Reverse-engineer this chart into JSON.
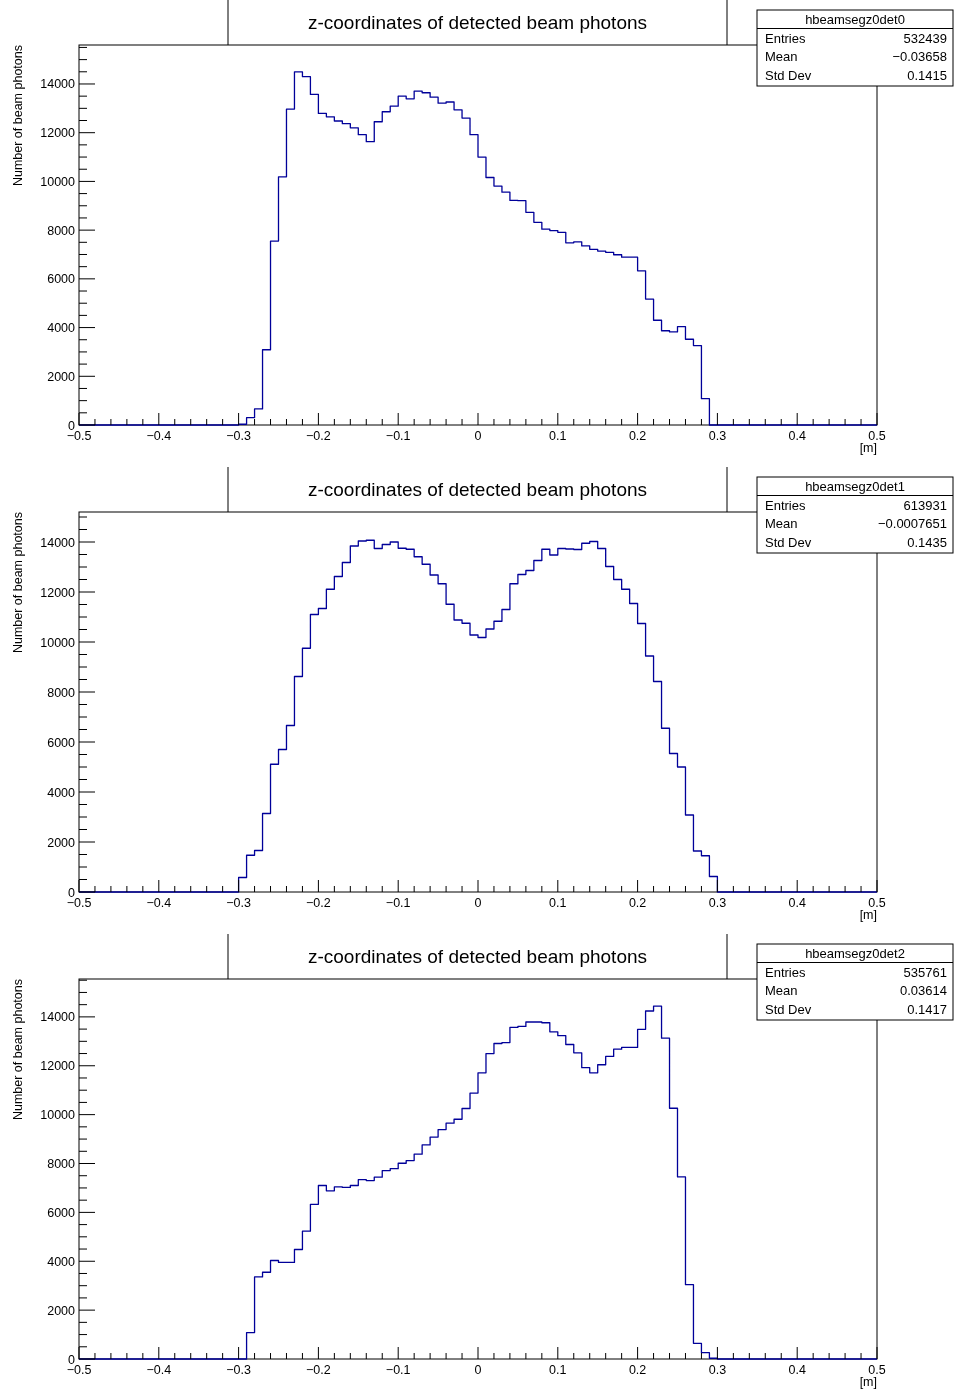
{
  "chart_data": [
    {
      "type": "histogram",
      "title": "z-coordinates of detected beam photons",
      "xlabel": "[m]",
      "ylabel": "Number of beam photons",
      "color": "#000099",
      "xlim": [
        -0.5,
        0.5
      ],
      "ylim": [
        0,
        15600
      ],
      "xticks": [
        {
          "value": -0.5,
          "label": "−0.5"
        },
        {
          "value": -0.48,
          "label": null
        },
        {
          "value": -0.46,
          "label": null
        },
        {
          "value": -0.44,
          "label": null
        },
        {
          "value": -0.42,
          "label": null
        },
        {
          "value": -0.4,
          "label": "−0.4"
        },
        {
          "value": -0.38,
          "label": null
        },
        {
          "value": -0.36,
          "label": null
        },
        {
          "value": -0.34,
          "label": null
        },
        {
          "value": -0.32,
          "label": null
        },
        {
          "value": -0.3,
          "label": "−0.3"
        },
        {
          "value": -0.28,
          "label": null
        },
        {
          "value": -0.26,
          "label": null
        },
        {
          "value": -0.24,
          "label": null
        },
        {
          "value": -0.22,
          "label": null
        },
        {
          "value": -0.2,
          "label": "−0.2"
        },
        {
          "value": -0.18,
          "label": null
        },
        {
          "value": -0.16,
          "label": null
        },
        {
          "value": -0.14,
          "label": null
        },
        {
          "value": -0.12,
          "label": null
        },
        {
          "value": -0.1,
          "label": "−0.1"
        },
        {
          "value": -0.08,
          "label": null
        },
        {
          "value": -0.06,
          "label": null
        },
        {
          "value": -0.04,
          "label": null
        },
        {
          "value": -0.02,
          "label": null
        },
        0,
        {
          "value": 0.02,
          "label": null
        },
        {
          "value": 0.04,
          "label": null
        },
        {
          "value": 0.06,
          "label": null
        },
        {
          "value": 0.08,
          "label": null
        },
        0.1,
        {
          "value": 0.12,
          "label": null
        },
        {
          "value": 0.14,
          "label": null
        },
        {
          "value": 0.16,
          "label": null
        },
        {
          "value": 0.18,
          "label": null
        },
        0.2,
        {
          "value": 0.22,
          "label": null
        },
        {
          "value": 0.24,
          "label": null
        },
        {
          "value": 0.26,
          "label": null
        },
        {
          "value": 0.28,
          "label": null
        },
        0.3,
        {
          "value": 0.32,
          "label": null
        },
        {
          "value": 0.34,
          "label": null
        },
        {
          "value": 0.36,
          "label": null
        },
        {
          "value": 0.38,
          "label": null
        },
        0.4,
        {
          "value": 0.42,
          "label": null
        },
        {
          "value": 0.44,
          "label": null
        },
        {
          "value": 0.46,
          "label": null
        },
        {
          "value": 0.48,
          "label": null
        },
        0.5
      ],
      "yticks": [
        0,
        {
          "value": 500,
          "label": null
        },
        {
          "value": 1000,
          "label": null
        },
        {
          "value": 1500,
          "label": null
        },
        2000,
        {
          "value": 2500,
          "label": null
        },
        {
          "value": 3000,
          "label": null
        },
        {
          "value": 3500,
          "label": null
        },
        4000,
        {
          "value": 4500,
          "label": null
        },
        {
          "value": 5000,
          "label": null
        },
        {
          "value": 5500,
          "label": null
        },
        6000,
        {
          "value": 6500,
          "label": null
        },
        {
          "value": 7000,
          "label": null
        },
        {
          "value": 7500,
          "label": null
        },
        8000,
        {
          "value": 8500,
          "label": null
        },
        {
          "value": 9000,
          "label": null
        },
        {
          "value": 9500,
          "label": null
        },
        10000,
        {
          "value": 10500,
          "label": null
        },
        {
          "value": 11000,
          "label": null
        },
        {
          "value": 11500,
          "label": null
        },
        12000,
        {
          "value": 12500,
          "label": null
        },
        {
          "value": 13000,
          "label": null
        },
        {
          "value": 13500,
          "label": null
        },
        14000,
        {
          "value": 14500,
          "label": null
        },
        {
          "value": 15000,
          "label": null
        },
        {
          "value": 15500,
          "label": null
        }
      ],
      "bins": [
        -0.5,
        -0.49,
        -0.48,
        -0.47,
        -0.46,
        -0.45,
        -0.44,
        -0.43,
        -0.42,
        -0.41,
        -0.4,
        -0.39,
        -0.38,
        -0.37,
        -0.36,
        -0.35,
        -0.34,
        -0.33,
        -0.32,
        -0.31,
        -0.3,
        -0.29,
        -0.28,
        -0.27,
        -0.26,
        -0.25,
        -0.24,
        -0.23,
        -0.22,
        -0.21,
        -0.2,
        -0.19,
        -0.18,
        -0.17,
        -0.16,
        -0.15,
        -0.14,
        -0.13,
        -0.12,
        -0.11,
        -0.1,
        -0.09,
        -0.08,
        -0.07,
        -0.06,
        -0.05,
        -0.04,
        -0.03,
        -0.02,
        -0.01,
        0,
        0.01,
        0.02,
        0.03,
        0.04,
        0.05,
        0.06,
        0.07,
        0.08,
        0.09,
        0.1,
        0.11,
        0.12,
        0.13,
        0.14,
        0.15,
        0.16,
        0.17,
        0.18,
        0.19,
        0.2,
        0.21,
        0.22,
        0.23,
        0.24,
        0.25,
        0.26,
        0.27,
        0.28,
        0.29,
        0.3,
        0.31,
        0.32,
        0.33,
        0.34,
        0.35,
        0.36,
        0.37,
        0.38,
        0.39,
        0.4,
        0.41,
        0.42,
        0.43,
        0.44,
        0.45,
        0.46,
        0.47,
        0.48,
        0.49,
        0.5
      ],
      "values": [
        0,
        0,
        0,
        0,
        0,
        0,
        0,
        0,
        0,
        0,
        0,
        0,
        0,
        0,
        0,
        0,
        0,
        0,
        0,
        0,
        30,
        300,
        660,
        3090,
        7550,
        10190,
        12970,
        14500,
        14300,
        13570,
        12790,
        12650,
        12480,
        12370,
        12200,
        11920,
        11630,
        12450,
        12860,
        13090,
        13500,
        13390,
        13710,
        13640,
        13460,
        13210,
        13260,
        12940,
        12600,
        11920,
        11000,
        10160,
        9810,
        9560,
        9220,
        9210,
        8730,
        8320,
        8040,
        7980,
        7910,
        7480,
        7520,
        7350,
        7210,
        7140,
        7090,
        6990,
        6890,
        6890,
        6330,
        5170,
        4300,
        3870,
        3820,
        4040,
        3520,
        3260,
        1080,
        0,
        0,
        0,
        0,
        0,
        0,
        0,
        0,
        0,
        0,
        0,
        0,
        0,
        0,
        0,
        0,
        0,
        0,
        0,
        0,
        0
      ],
      "annotations": [
        "hbeamsegz0det0",
        "Entries",
        "532439",
        "Mean",
        "−0.03658",
        "Std Dev",
        "0.1415"
      ]
    },
    {
      "type": "histogram",
      "title": "z-coordinates of detected beam photons",
      "xlabel": "[m]",
      "ylabel": "Number of beam photons",
      "color": "#000099",
      "xlim": [
        -0.5,
        0.5
      ],
      "ylim": [
        0,
        15200
      ],
      "xticks": [
        {
          "value": -0.5,
          "label": "−0.5"
        },
        {
          "value": -0.48,
          "label": null
        },
        {
          "value": -0.46,
          "label": null
        },
        {
          "value": -0.44,
          "label": null
        },
        {
          "value": -0.42,
          "label": null
        },
        {
          "value": -0.4,
          "label": "−0.4"
        },
        {
          "value": -0.38,
          "label": null
        },
        {
          "value": -0.36,
          "label": null
        },
        {
          "value": -0.34,
          "label": null
        },
        {
          "value": -0.32,
          "label": null
        },
        {
          "value": -0.3,
          "label": "−0.3"
        },
        {
          "value": -0.28,
          "label": null
        },
        {
          "value": -0.26,
          "label": null
        },
        {
          "value": -0.24,
          "label": null
        },
        {
          "value": -0.22,
          "label": null
        },
        {
          "value": -0.2,
          "label": "−0.2"
        },
        {
          "value": -0.18,
          "label": null
        },
        {
          "value": -0.16,
          "label": null
        },
        {
          "value": -0.14,
          "label": null
        },
        {
          "value": -0.12,
          "label": null
        },
        {
          "value": -0.1,
          "label": "−0.1"
        },
        {
          "value": -0.08,
          "label": null
        },
        {
          "value": -0.06,
          "label": null
        },
        {
          "value": -0.04,
          "label": null
        },
        {
          "value": -0.02,
          "label": null
        },
        0,
        {
          "value": 0.02,
          "label": null
        },
        {
          "value": 0.04,
          "label": null
        },
        {
          "value": 0.06,
          "label": null
        },
        {
          "value": 0.08,
          "label": null
        },
        0.1,
        {
          "value": 0.12,
          "label": null
        },
        {
          "value": 0.14,
          "label": null
        },
        {
          "value": 0.16,
          "label": null
        },
        {
          "value": 0.18,
          "label": null
        },
        0.2,
        {
          "value": 0.22,
          "label": null
        },
        {
          "value": 0.24,
          "label": null
        },
        {
          "value": 0.26,
          "label": null
        },
        {
          "value": 0.28,
          "label": null
        },
        0.3,
        {
          "value": 0.32,
          "label": null
        },
        {
          "value": 0.34,
          "label": null
        },
        {
          "value": 0.36,
          "label": null
        },
        {
          "value": 0.38,
          "label": null
        },
        0.4,
        {
          "value": 0.42,
          "label": null
        },
        {
          "value": 0.44,
          "label": null
        },
        {
          "value": 0.46,
          "label": null
        },
        {
          "value": 0.48,
          "label": null
        },
        0.5
      ],
      "yticks": [
        0,
        {
          "value": 500,
          "label": null
        },
        {
          "value": 1000,
          "label": null
        },
        {
          "value": 1500,
          "label": null
        },
        2000,
        {
          "value": 2500,
          "label": null
        },
        {
          "value": 3000,
          "label": null
        },
        {
          "value": 3500,
          "label": null
        },
        4000,
        {
          "value": 4500,
          "label": null
        },
        {
          "value": 5000,
          "label": null
        },
        {
          "value": 5500,
          "label": null
        },
        6000,
        {
          "value": 6500,
          "label": null
        },
        {
          "value": 7000,
          "label": null
        },
        {
          "value": 7500,
          "label": null
        },
        8000,
        {
          "value": 8500,
          "label": null
        },
        {
          "value": 9000,
          "label": null
        },
        {
          "value": 9500,
          "label": null
        },
        10000,
        {
          "value": 10500,
          "label": null
        },
        {
          "value": 11000,
          "label": null
        },
        {
          "value": 11500,
          "label": null
        },
        12000,
        {
          "value": 12500,
          "label": null
        },
        {
          "value": 13000,
          "label": null
        },
        {
          "value": 13500,
          "label": null
        },
        14000,
        {
          "value": 14500,
          "label": null
        },
        {
          "value": 15000,
          "label": null
        }
      ],
      "bins": [
        -0.5,
        -0.49,
        -0.48,
        -0.47,
        -0.46,
        -0.45,
        -0.44,
        -0.43,
        -0.42,
        -0.41,
        -0.4,
        -0.39,
        -0.38,
        -0.37,
        -0.36,
        -0.35,
        -0.34,
        -0.33,
        -0.32,
        -0.31,
        -0.3,
        -0.29,
        -0.28,
        -0.27,
        -0.26,
        -0.25,
        -0.24,
        -0.23,
        -0.22,
        -0.21,
        -0.2,
        -0.19,
        -0.18,
        -0.17,
        -0.16,
        -0.15,
        -0.14,
        -0.13,
        -0.12,
        -0.11,
        -0.1,
        -0.09,
        -0.08,
        -0.07,
        -0.06,
        -0.05,
        -0.04,
        -0.03,
        -0.02,
        -0.01,
        0,
        0.01,
        0.02,
        0.03,
        0.04,
        0.05,
        0.06,
        0.07,
        0.08,
        0.09,
        0.1,
        0.11,
        0.12,
        0.13,
        0.14,
        0.15,
        0.16,
        0.17,
        0.18,
        0.19,
        0.2,
        0.21,
        0.22,
        0.23,
        0.24,
        0.25,
        0.26,
        0.27,
        0.28,
        0.29,
        0.3,
        0.31,
        0.32,
        0.33,
        0.34,
        0.35,
        0.36,
        0.37,
        0.38,
        0.39,
        0.4,
        0.41,
        0.42,
        0.43,
        0.44,
        0.45,
        0.46,
        0.47,
        0.48,
        0.49,
        0.5
      ],
      "values": [
        0,
        0,
        0,
        0,
        0,
        0,
        0,
        0,
        0,
        0,
        0,
        0,
        0,
        0,
        0,
        0,
        0,
        0,
        0,
        0,
        580,
        1470,
        1660,
        3140,
        5110,
        5700,
        6660,
        8620,
        9750,
        11100,
        11340,
        12110,
        12620,
        13180,
        13840,
        14040,
        14070,
        13740,
        13900,
        14000,
        13750,
        13710,
        13410,
        13110,
        12680,
        12330,
        11510,
        10880,
        10750,
        10280,
        10180,
        10520,
        10830,
        11300,
        12330,
        12700,
        12860,
        13260,
        13710,
        13480,
        13740,
        13720,
        13700,
        13950,
        14020,
        13740,
        13020,
        12500,
        12110,
        11540,
        10740,
        9440,
        8420,
        6550,
        5540,
        5000,
        3080,
        1640,
        1450,
        620,
        0,
        0,
        0,
        0,
        0,
        0,
        0,
        0,
        0,
        0,
        0,
        0,
        0,
        0,
        0,
        0,
        0,
        0,
        0,
        0
      ],
      "annotations": [
        "hbeamsegz0det1",
        "Entries",
        "613931",
        "Mean",
        "−0.0007651",
        "Std Dev",
        "0.1435"
      ]
    },
    {
      "type": "histogram",
      "title": "z-coordinates of detected beam photons",
      "xlabel": "[m]",
      "ylabel": "Number of beam photons",
      "color": "#000099",
      "xlim": [
        -0.5,
        0.5
      ],
      "ylim": [
        0,
        15550
      ],
      "xticks": [
        {
          "value": -0.5,
          "label": "−0.5"
        },
        {
          "value": -0.48,
          "label": null
        },
        {
          "value": -0.46,
          "label": null
        },
        {
          "value": -0.44,
          "label": null
        },
        {
          "value": -0.42,
          "label": null
        },
        {
          "value": -0.4,
          "label": "−0.4"
        },
        {
          "value": -0.38,
          "label": null
        },
        {
          "value": -0.36,
          "label": null
        },
        {
          "value": -0.34,
          "label": null
        },
        {
          "value": -0.32,
          "label": null
        },
        {
          "value": -0.3,
          "label": "−0.3"
        },
        {
          "value": -0.28,
          "label": null
        },
        {
          "value": -0.26,
          "label": null
        },
        {
          "value": -0.24,
          "label": null
        },
        {
          "value": -0.22,
          "label": null
        },
        {
          "value": -0.2,
          "label": "−0.2"
        },
        {
          "value": -0.18,
          "label": null
        },
        {
          "value": -0.16,
          "label": null
        },
        {
          "value": -0.14,
          "label": null
        },
        {
          "value": -0.12,
          "label": null
        },
        {
          "value": -0.1,
          "label": "−0.1"
        },
        {
          "value": -0.08,
          "label": null
        },
        {
          "value": -0.06,
          "label": null
        },
        {
          "value": -0.04,
          "label": null
        },
        {
          "value": -0.02,
          "label": null
        },
        0,
        {
          "value": 0.02,
          "label": null
        },
        {
          "value": 0.04,
          "label": null
        },
        {
          "value": 0.06,
          "label": null
        },
        {
          "value": 0.08,
          "label": null
        },
        0.1,
        {
          "value": 0.12,
          "label": null
        },
        {
          "value": 0.14,
          "label": null
        },
        {
          "value": 0.16,
          "label": null
        },
        {
          "value": 0.18,
          "label": null
        },
        0.2,
        {
          "value": 0.22,
          "label": null
        },
        {
          "value": 0.24,
          "label": null
        },
        {
          "value": 0.26,
          "label": null
        },
        {
          "value": 0.28,
          "label": null
        },
        0.3,
        {
          "value": 0.32,
          "label": null
        },
        {
          "value": 0.34,
          "label": null
        },
        {
          "value": 0.36,
          "label": null
        },
        {
          "value": 0.38,
          "label": null
        },
        0.4,
        {
          "value": 0.42,
          "label": null
        },
        {
          "value": 0.44,
          "label": null
        },
        {
          "value": 0.46,
          "label": null
        },
        {
          "value": 0.48,
          "label": null
        },
        0.5
      ],
      "yticks": [
        0,
        {
          "value": 500,
          "label": null
        },
        {
          "value": 1000,
          "label": null
        },
        {
          "value": 1500,
          "label": null
        },
        2000,
        {
          "value": 2500,
          "label": null
        },
        {
          "value": 3000,
          "label": null
        },
        {
          "value": 3500,
          "label": null
        },
        4000,
        {
          "value": 4500,
          "label": null
        },
        {
          "value": 5000,
          "label": null
        },
        {
          "value": 5500,
          "label": null
        },
        6000,
        {
          "value": 6500,
          "label": null
        },
        {
          "value": 7000,
          "label": null
        },
        {
          "value": 7500,
          "label": null
        },
        8000,
        {
          "value": 8500,
          "label": null
        },
        {
          "value": 9000,
          "label": null
        },
        {
          "value": 9500,
          "label": null
        },
        10000,
        {
          "value": 10500,
          "label": null
        },
        {
          "value": 11000,
          "label": null
        },
        {
          "value": 11500,
          "label": null
        },
        12000,
        {
          "value": 12500,
          "label": null
        },
        {
          "value": 13000,
          "label": null
        },
        {
          "value": 13500,
          "label": null
        },
        14000,
        {
          "value": 14500,
          "label": null
        },
        {
          "value": 15000,
          "label": null
        },
        {
          "value": 15500,
          "label": null
        }
      ],
      "bins": [
        -0.5,
        -0.49,
        -0.48,
        -0.47,
        -0.46,
        -0.45,
        -0.44,
        -0.43,
        -0.42,
        -0.41,
        -0.4,
        -0.39,
        -0.38,
        -0.37,
        -0.36,
        -0.35,
        -0.34,
        -0.33,
        -0.32,
        -0.31,
        -0.3,
        -0.29,
        -0.28,
        -0.27,
        -0.26,
        -0.25,
        -0.24,
        -0.23,
        -0.22,
        -0.21,
        -0.2,
        -0.19,
        -0.18,
        -0.17,
        -0.16,
        -0.15,
        -0.14,
        -0.13,
        -0.12,
        -0.11,
        -0.1,
        -0.09,
        -0.08,
        -0.07,
        -0.06,
        -0.05,
        -0.04,
        -0.03,
        -0.02,
        -0.01,
        0,
        0.01,
        0.02,
        0.03,
        0.04,
        0.05,
        0.06,
        0.07,
        0.08,
        0.09,
        0.1,
        0.11,
        0.12,
        0.13,
        0.14,
        0.15,
        0.16,
        0.17,
        0.18,
        0.19,
        0.2,
        0.21,
        0.22,
        0.23,
        0.24,
        0.25,
        0.26,
        0.27,
        0.28,
        0.29,
        0.3,
        0.31,
        0.32,
        0.33,
        0.34,
        0.35,
        0.36,
        0.37,
        0.38,
        0.39,
        0.4,
        0.41,
        0.42,
        0.43,
        0.44,
        0.45,
        0.46,
        0.47,
        0.48,
        0.49,
        0.5
      ],
      "values": [
        0,
        0,
        0,
        0,
        0,
        0,
        0,
        0,
        0,
        0,
        0,
        0,
        0,
        0,
        0,
        0,
        0,
        0,
        0,
        0,
        0,
        1080,
        3360,
        3550,
        4030,
        3950,
        3950,
        4480,
        5230,
        6330,
        7100,
        6880,
        7040,
        7020,
        7100,
        7340,
        7300,
        7440,
        7710,
        7790,
        8010,
        8120,
        8380,
        8760,
        9080,
        9390,
        9650,
        9810,
        10250,
        10880,
        11710,
        12500,
        12910,
        12950,
        13570,
        13610,
        13790,
        13790,
        13760,
        13390,
        13230,
        12870,
        12530,
        11920,
        11710,
        12040,
        12380,
        12680,
        12750,
        12750,
        13490,
        14240,
        14440,
        13130,
        10260,
        7450,
        3040,
        640,
        260,
        30,
        0,
        0,
        0,
        0,
        0,
        0,
        0,
        0,
        0,
        0,
        0,
        0,
        0,
        0,
        0,
        0,
        0,
        0,
        0,
        0
      ],
      "annotations": [
        "hbeamsegz0det2",
        "Entries",
        "535761",
        "Mean",
        "0.03614",
        "Std Dev",
        "0.1417"
      ]
    }
  ]
}
